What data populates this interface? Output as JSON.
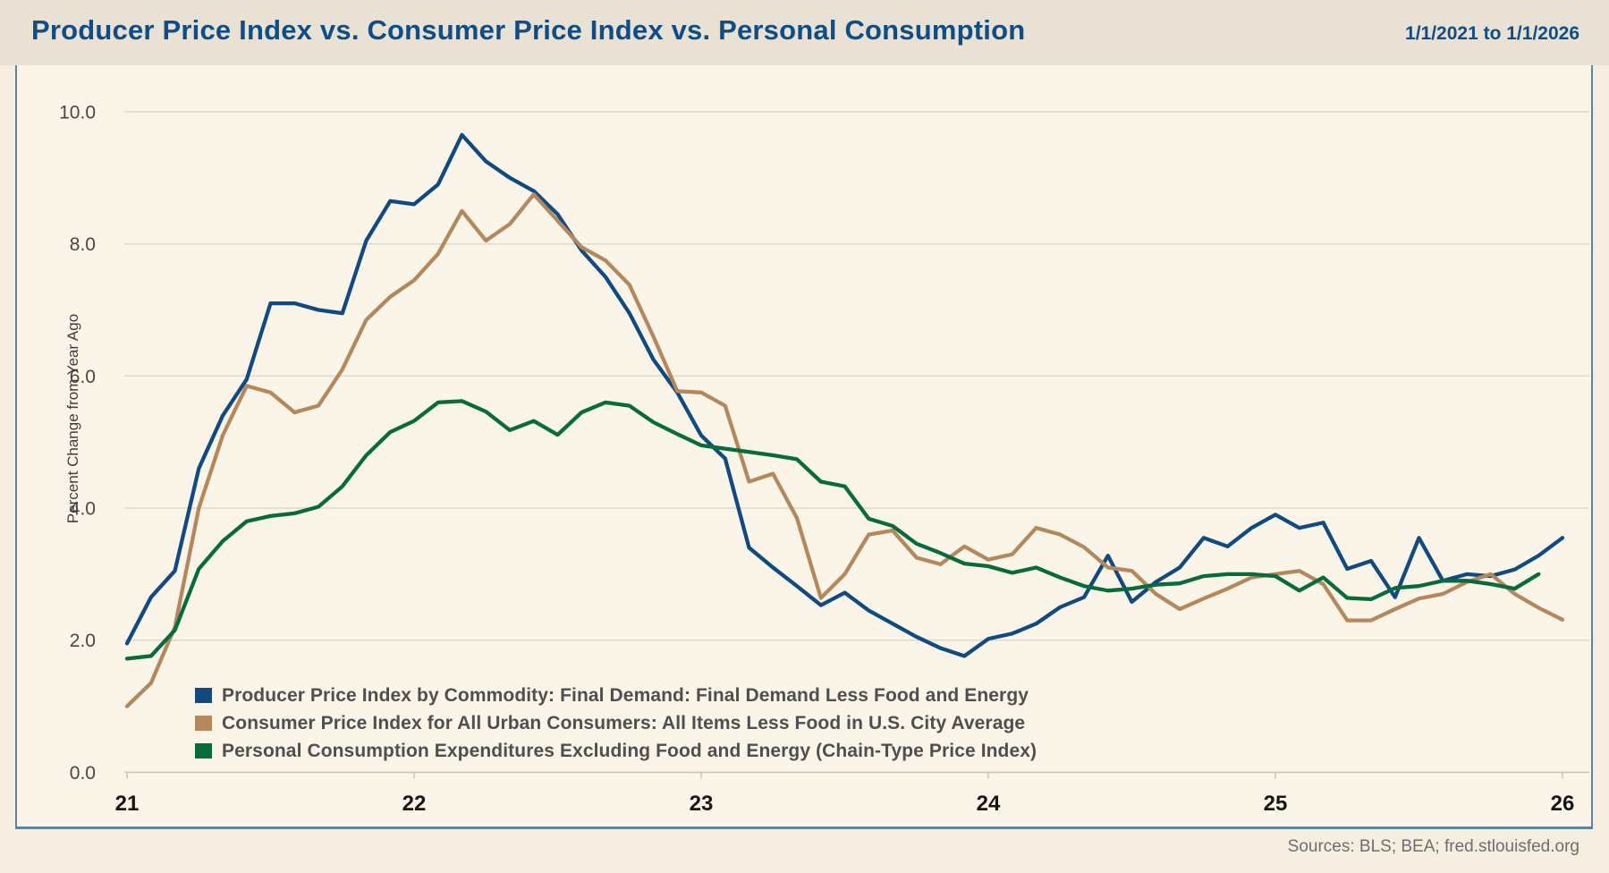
{
  "header": {
    "title": "Producer Price Index vs. Consumer Price Index vs. Personal Consumption",
    "date_range": "1/1/2021 to 1/1/2026"
  },
  "y_axis": {
    "label": "Percent Change from Year Ago",
    "ticks": [
      {
        "label": "0.0",
        "value": 0
      },
      {
        "label": "2.0",
        "value": 2
      },
      {
        "label": "4.0",
        "value": 4
      },
      {
        "label": "6.0",
        "value": 6
      },
      {
        "label": "8.0",
        "value": 8
      },
      {
        "label": "10.0",
        "value": 10
      }
    ]
  },
  "x_axis": {
    "ticks": [
      {
        "label": "21",
        "month_index": 0
      },
      {
        "label": "22",
        "month_index": 12
      },
      {
        "label": "23",
        "month_index": 24
      },
      {
        "label": "24",
        "month_index": 36
      },
      {
        "label": "25",
        "month_index": 48
      },
      {
        "label": "26",
        "month_index": 60
      }
    ]
  },
  "legend": [
    {
      "label": "Producer Price Index by Commodity: Final Demand: Final Demand Less Food and Energy",
      "color": "#114a80"
    },
    {
      "label": "Consumer Price Index for All Urban Consumers: All Items Less Food in U.S. City Average",
      "color": "#b4885c"
    },
    {
      "label": "Personal Consumption Expenditures Excluding Food and Energy (Chain-Type Price Index)",
      "color": "#076b3b"
    }
  ],
  "footer": {
    "sources": "Sources: BLS; BEA; fred.stlouisfed.org"
  },
  "chart_data": {
    "type": "line",
    "title": "Producer Price Index vs. Consumer Price Index vs. Personal Consumption",
    "xlabel": "",
    "ylabel": "Percent Change from Year Ago",
    "x_range": [
      "2021-01",
      "2026-01"
    ],
    "frequency": "monthly",
    "ylim": [
      0,
      10.7
    ],
    "grid_interval": 2,
    "grid": true,
    "legend_position": "bottom-left-inside",
    "x_tick_labels": [
      "21",
      "22",
      "23",
      "24",
      "25",
      "26"
    ],
    "series": [
      {
        "name": "Producer Price Index by Commodity: Final Demand: Final Demand Less Food and Energy",
        "color": "#114a80",
        "start": "2021-01",
        "values": [
          1.95,
          2.65,
          3.05,
          4.6,
          5.4,
          5.95,
          7.1,
          7.1,
          7.0,
          6.95,
          8.05,
          8.65,
          8.6,
          8.9,
          9.65,
          9.25,
          9.0,
          8.8,
          8.45,
          7.9,
          7.5,
          6.95,
          6.25,
          5.75,
          5.1,
          4.75,
          3.4,
          3.1,
          2.82,
          2.53,
          2.72,
          2.45,
          2.25,
          2.05,
          1.88,
          1.76,
          2.02,
          2.1,
          2.25,
          2.5,
          2.65,
          3.28,
          2.58,
          2.88,
          3.1,
          3.55,
          3.42,
          3.7,
          3.9,
          3.7,
          3.78,
          3.08,
          3.2,
          2.65,
          3.55,
          2.9,
          3.0,
          2.97,
          3.07,
          3.28,
          3.55
        ]
      },
      {
        "name": "Consumer Price Index for All Urban Consumers: All Items Less Food in U.S. City Average",
        "color": "#b4885c",
        "start": "2021-01",
        "values": [
          1.0,
          1.35,
          2.2,
          4.0,
          5.1,
          5.85,
          5.75,
          5.45,
          5.55,
          6.1,
          6.85,
          7.2,
          7.45,
          7.85,
          8.5,
          8.05,
          8.3,
          8.75,
          8.35,
          7.95,
          7.75,
          7.38,
          6.6,
          5.77,
          5.75,
          5.55,
          4.4,
          4.52,
          3.85,
          2.64,
          3.0,
          3.6,
          3.66,
          3.25,
          3.15,
          3.42,
          3.22,
          3.3,
          3.7,
          3.6,
          3.41,
          3.1,
          3.05,
          2.7,
          2.47,
          2.63,
          2.78,
          2.95,
          3.0,
          3.05,
          2.85,
          2.3,
          2.3,
          2.47,
          2.63,
          2.7,
          2.88,
          3.0,
          2.7,
          2.49,
          2.31
        ]
      },
      {
        "name": "Personal Consumption Expenditures Excluding Food and Energy (Chain-Type Price Index)",
        "color": "#076b3b",
        "start": "2021-01",
        "values": [
          1.72,
          1.76,
          2.15,
          3.08,
          3.5,
          3.8,
          3.88,
          3.92,
          4.02,
          4.33,
          4.8,
          5.15,
          5.32,
          5.6,
          5.62,
          5.46,
          5.18,
          5.32,
          5.11,
          5.45,
          5.6,
          5.55,
          5.3,
          5.12,
          4.95,
          4.9,
          4.85,
          4.8,
          4.74,
          4.4,
          4.33,
          3.84,
          3.73,
          3.46,
          3.32,
          3.16,
          3.12,
          3.02,
          3.1,
          2.95,
          2.82,
          2.75,
          2.78,
          2.84,
          2.86,
          2.97,
          3.0,
          3.0,
          2.97,
          2.75,
          2.95,
          2.64,
          2.62,
          2.79,
          2.82,
          2.9,
          2.9,
          2.85,
          2.78,
          3.0
        ]
      }
    ]
  }
}
